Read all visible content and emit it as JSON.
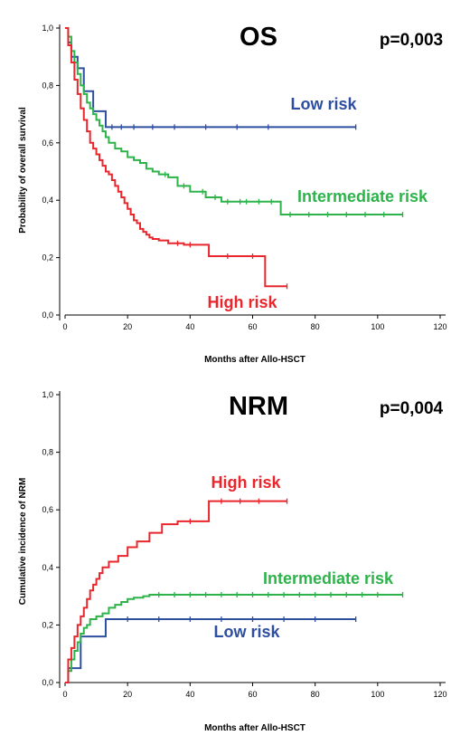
{
  "colors": {
    "low": "#2e4fa0",
    "intermediate": "#2db34a",
    "high": "#e8262c",
    "axis": "#000000"
  },
  "chart_data": [
    {
      "type": "line",
      "step": true,
      "title": "OS",
      "pvalue": "p=0,003",
      "xlabel": "Months after Allo-HSCT",
      "ylabel": "Probability of overall survival",
      "xlim": [
        0,
        120
      ],
      "ylim": [
        0,
        1
      ],
      "xticks": [
        "0",
        "20",
        "40",
        "60",
        "80",
        "100",
        "120"
      ],
      "yticks": [
        "0,0",
        "0,2",
        "0,4",
        "0,6",
        "0,8",
        "1,0"
      ],
      "grid": false,
      "series": [
        {
          "name": "Low risk",
          "color_key": "low",
          "x": [
            0,
            1,
            2,
            4,
            6,
            9,
            13,
            93
          ],
          "y": [
            1.0,
            0.95,
            0.9,
            0.86,
            0.78,
            0.71,
            0.655,
            0.655
          ],
          "censor_x": [
            15,
            18,
            22,
            28,
            35,
            45,
            55,
            65,
            93
          ]
        },
        {
          "name": "Intermediate risk",
          "color_key": "intermediate",
          "x": [
            0,
            1,
            2,
            3,
            4,
            5,
            6,
            7,
            8,
            9,
            10,
            11,
            12,
            13,
            14,
            16,
            18,
            20,
            22,
            24,
            26,
            28,
            30,
            33,
            36,
            40,
            45,
            50,
            55,
            60,
            65,
            69,
            108
          ],
          "y": [
            1.0,
            0.97,
            0.92,
            0.88,
            0.84,
            0.8,
            0.77,
            0.74,
            0.72,
            0.7,
            0.68,
            0.66,
            0.64,
            0.62,
            0.6,
            0.58,
            0.57,
            0.55,
            0.54,
            0.53,
            0.51,
            0.5,
            0.49,
            0.48,
            0.45,
            0.43,
            0.41,
            0.395,
            0.395,
            0.395,
            0.395,
            0.35,
            0.35
          ],
          "censor_x": [
            32,
            38,
            44,
            48,
            52,
            56,
            58,
            62,
            66,
            72,
            78,
            84,
            90,
            96,
            102,
            108
          ]
        },
        {
          "name": "High risk",
          "color_key": "high",
          "x": [
            0,
            1,
            2,
            3,
            4,
            5,
            6,
            7,
            8,
            9,
            10,
            11,
            12,
            13,
            14,
            15,
            16,
            17,
            18,
            19,
            20,
            21,
            22,
            23,
            24,
            25,
            26,
            27,
            28,
            30,
            33,
            38,
            46,
            58,
            64,
            71
          ],
          "y": [
            1.0,
            0.94,
            0.88,
            0.82,
            0.77,
            0.72,
            0.68,
            0.64,
            0.6,
            0.58,
            0.56,
            0.54,
            0.52,
            0.5,
            0.49,
            0.47,
            0.45,
            0.43,
            0.41,
            0.39,
            0.37,
            0.35,
            0.33,
            0.32,
            0.3,
            0.29,
            0.28,
            0.27,
            0.265,
            0.26,
            0.25,
            0.245,
            0.205,
            0.205,
            0.1,
            0.1
          ],
          "censor_x": [
            36,
            40,
            52,
            60,
            71
          ]
        }
      ],
      "annotations": [
        {
          "text": "Low risk",
          "color_key": "low"
        },
        {
          "text": "Intermediate risk",
          "color_key": "intermediate"
        },
        {
          "text": "High risk",
          "color_key": "high"
        }
      ]
    },
    {
      "type": "line",
      "step": true,
      "title": "NRM",
      "pvalue": "p=0,004",
      "xlabel": "Months after Allo-HSCT",
      "ylabel": "Cumulative incidence of NRM",
      "xlim": [
        0,
        120
      ],
      "ylim": [
        0,
        1
      ],
      "xticks": [
        "0",
        "20",
        "40",
        "60",
        "80",
        "100",
        "120"
      ],
      "yticks": [
        "0,0",
        "0,2",
        "0,4",
        "0,6",
        "0,8",
        "1,0"
      ],
      "grid": false,
      "series": [
        {
          "name": "Low risk",
          "color_key": "low",
          "x": [
            0,
            1,
            5,
            13,
            93
          ],
          "y": [
            0.0,
            0.05,
            0.16,
            0.22,
            0.22
          ],
          "censor_x": [
            20,
            30,
            40,
            50,
            60,
            70,
            80,
            93
          ]
        },
        {
          "name": "Intermediate risk",
          "color_key": "intermediate",
          "x": [
            0,
            1,
            2,
            3,
            4,
            5,
            6,
            7,
            8,
            10,
            12,
            14,
            16,
            18,
            20,
            22,
            25,
            27,
            108
          ],
          "y": [
            0.0,
            0.04,
            0.08,
            0.11,
            0.14,
            0.17,
            0.19,
            0.2,
            0.22,
            0.23,
            0.24,
            0.26,
            0.27,
            0.28,
            0.29,
            0.295,
            0.3,
            0.305,
            0.305
          ],
          "censor_x": [
            30,
            35,
            40,
            45,
            50,
            55,
            60,
            65,
            70,
            75,
            80,
            85,
            90,
            95,
            100,
            108
          ]
        },
        {
          "name": "High risk",
          "color_key": "high",
          "x": [
            0,
            1,
            2,
            3,
            4,
            5,
            6,
            7,
            8,
            9,
            10,
            11,
            12,
            14,
            17,
            20,
            23,
            27,
            31,
            36,
            46,
            71
          ],
          "y": [
            0.0,
            0.08,
            0.12,
            0.16,
            0.2,
            0.23,
            0.26,
            0.29,
            0.32,
            0.34,
            0.36,
            0.38,
            0.4,
            0.42,
            0.44,
            0.47,
            0.49,
            0.52,
            0.55,
            0.56,
            0.63,
            0.63
          ],
          "censor_x": [
            40,
            50,
            56,
            62,
            71
          ]
        }
      ],
      "annotations": [
        {
          "text": "High risk",
          "color_key": "high"
        },
        {
          "text": "Intermediate risk",
          "color_key": "intermediate"
        },
        {
          "text": "Low risk",
          "color_key": "low"
        }
      ]
    }
  ]
}
